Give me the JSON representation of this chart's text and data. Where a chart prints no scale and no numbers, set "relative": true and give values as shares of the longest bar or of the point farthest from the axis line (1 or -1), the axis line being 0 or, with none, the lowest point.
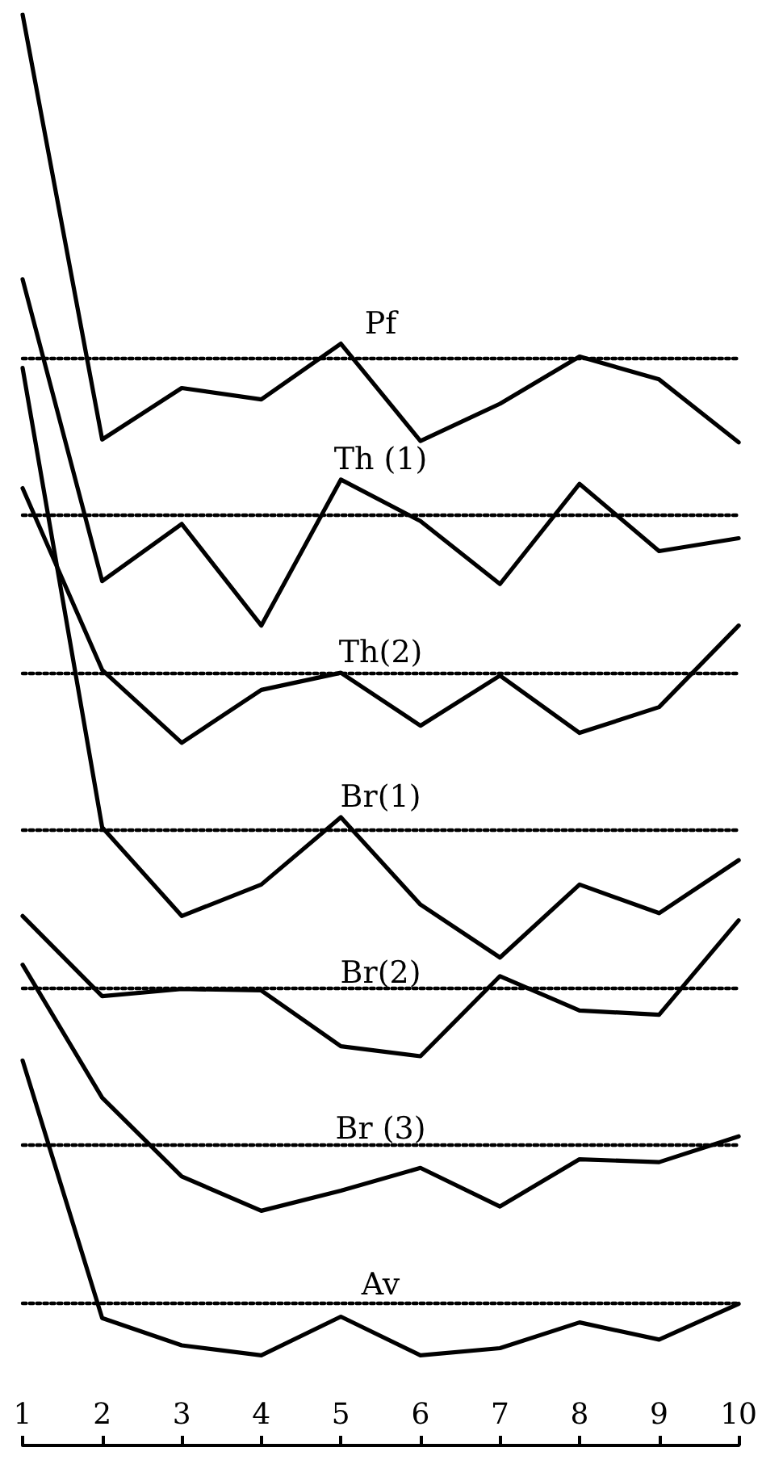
{
  "chart_data": {
    "type": "line",
    "relative": true,
    "marker": "none",
    "line_style": "solid",
    "x": [
      1,
      2,
      3,
      4,
      5,
      6,
      7,
      8,
      9,
      10
    ],
    "xlim": [
      1,
      10
    ],
    "xticks": [
      1,
      2,
      3,
      4,
      5,
      6,
      7,
      8,
      9,
      10
    ],
    "series": [
      {
        "name": "Pf",
        "color": "#000000",
        "values": [
          1.0,
          0.703,
          0.739,
          0.731,
          0.77,
          0.702,
          0.728,
          0.761,
          0.745,
          0.701
        ]
      },
      {
        "name": "Th (1)",
        "color": "#000000",
        "values": [
          0.815,
          0.604,
          0.644,
          0.573,
          0.675,
          0.646,
          0.602,
          0.672,
          0.625,
          0.634
        ]
      },
      {
        "name": "Th(2)",
        "color": "#000000",
        "values": [
          0.669,
          0.542,
          0.491,
          0.528,
          0.54,
          0.503,
          0.538,
          0.498,
          0.516,
          0.573
        ]
      },
      {
        "name": "Br(1)",
        "color": "#000000",
        "values": [
          0.753,
          0.432,
          0.37,
          0.392,
          0.439,
          0.378,
          0.341,
          0.392,
          0.372,
          0.409
        ]
      },
      {
        "name": "Br(2)",
        "color": "#000000",
        "values": [
          0.37,
          0.314,
          0.319,
          0.318,
          0.279,
          0.272,
          0.328,
          0.304,
          0.301,
          0.367
        ]
      },
      {
        "name": "Br (3)",
        "color": "#000000",
        "values": [
          0.336,
          0.243,
          0.188,
          0.164,
          0.178,
          0.194,
          0.167,
          0.2,
          0.198,
          0.216
        ]
      },
      {
        "name": "Av",
        "color": "#000000",
        "values": [
          0.269,
          0.089,
          0.07,
          0.063,
          0.09,
          0.063,
          0.068,
          0.086,
          0.074,
          0.099
        ]
      }
    ],
    "ref_lines": [
      {
        "axis": "y",
        "value": 0.76,
        "line_style": "dotted",
        "color": "#000000"
      },
      {
        "axis": "y",
        "value": 0.647,
        "line_style": "dotted",
        "color": "#000000"
      },
      {
        "axis": "y",
        "value": 0.538,
        "line_style": "dotted",
        "color": "#000000"
      },
      {
        "axis": "y",
        "value": 0.429,
        "line_style": "dotted",
        "color": "#000000"
      },
      {
        "axis": "y",
        "value": 0.316,
        "line_style": "dotted",
        "color": "#000000"
      },
      {
        "axis": "y",
        "value": 0.207,
        "line_style": "dotted",
        "color": "#000000"
      },
      {
        "axis": "y",
        "value": 0.098,
        "line_style": "dotted",
        "color": "#000000"
      }
    ]
  }
}
